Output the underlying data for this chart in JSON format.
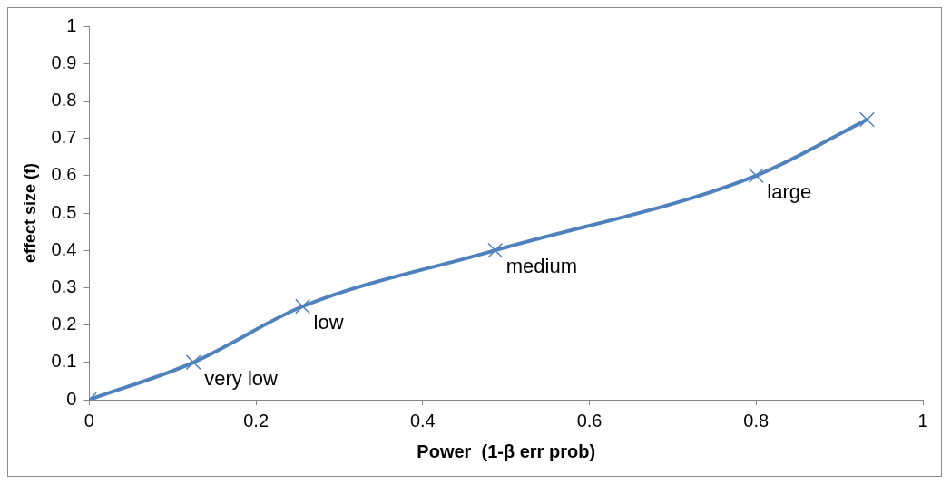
{
  "chart_data": {
    "type": "line",
    "xlabel": "Power  (1-β err prob)",
    "ylabel": "effect size (f)",
    "x": [
      0,
      0.125,
      0.256,
      0.487,
      0.8,
      0.933
    ],
    "series": [
      {
        "color": "#4f81bd",
        "values": [
          0,
          0.1,
          0.25,
          0.4,
          0.6,
          0.75
        ]
      }
    ],
    "xlim": [
      0,
      1
    ],
    "xticks": [
      0,
      0.2,
      0.4,
      0.6,
      0.8,
      1
    ],
    "ylim": [
      0,
      1
    ],
    "yticks": [
      0,
      0.1,
      0.2,
      0.3,
      0.4,
      0.5,
      0.6,
      0.7,
      0.8,
      0.9,
      1
    ],
    "marker": "cross",
    "line_style": "solid",
    "grid": false,
    "legend": false,
    "annotations": [
      {
        "text": "very low",
        "x": 0.125,
        "y": 0.1
      },
      {
        "text": "low",
        "x": 0.256,
        "y": 0.25
      },
      {
        "text": "medium",
        "x": 0.487,
        "y": 0.4
      },
      {
        "text": "large",
        "x": 0.8,
        "y": 0.6
      }
    ]
  }
}
